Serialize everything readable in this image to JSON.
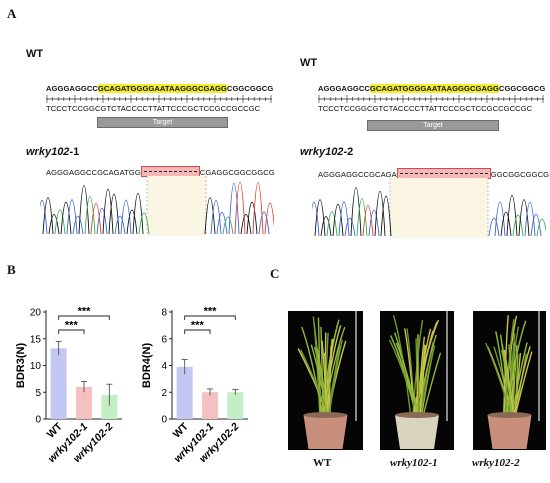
{
  "panels": {
    "a": "A",
    "b": "B",
    "c": "C"
  },
  "panel_a": {
    "left": {
      "wt_label": "WT",
      "wt_seq_pre": "AGGGAGGCC",
      "wt_seq_hl": "GCAGATGGGGAATAAGGGCGAGG",
      "wt_seq_post": "CGGCGGCG",
      "comp_seq": "TCCCTCCGGCGTCTACCCCTTATTCCCGCTCCGCCGCCGC",
      "target_label": "Target",
      "mut_label_main": "wrky102",
      "mut_label_suffix": "-1",
      "mut_seq_pre": "AGGGAGGCCGCAGATGG",
      "mut_seq_post": "CGAGGCGGCGGCG"
    },
    "right": {
      "wt_label": "WT",
      "wt_seq_pre": "AGGGAGGCC",
      "wt_seq_hl": "GCAGATGGGGAATAAGGGCGAGG",
      "wt_seq_post": "CGGCGGCG",
      "comp_seq": "TCCCTCCGGCGTCTACCCCTTATTCCCGCTCCGCCGCCGC",
      "target_label": "Target",
      "mut_label_main": "wrky102",
      "mut_label_suffix": "-2",
      "mut_seq_pre": "AGGGAGGCCGCAGA",
      "mut_seq_post": "GGCGGCGGCG"
    }
  },
  "chart_data": [
    {
      "type": "bar",
      "ylabel": "BDR3(N)",
      "categories": [
        "WT",
        "wrky102-1",
        "wrky102-2"
      ],
      "values": [
        13.2,
        6.0,
        4.5
      ],
      "errors": [
        1.3,
        1.0,
        2.0
      ],
      "ylim": [
        0,
        20
      ],
      "yticks": [
        "0",
        "5",
        "10",
        "15",
        "20"
      ],
      "colors": [
        "#c4c6f4",
        "#f4c0c0",
        "#c4eec4"
      ],
      "significance": [
        "***",
        "***"
      ]
    },
    {
      "type": "bar",
      "ylabel": "BDR4(N)",
      "categories": [
        "WT",
        "wrky102-1",
        "wrky102-2"
      ],
      "values": [
        3.9,
        2.0,
        2.0
      ],
      "errors": [
        0.55,
        0.25,
        0.2
      ],
      "ylim": [
        0,
        8
      ],
      "yticks": [
        "0",
        "2",
        "4",
        "6",
        "8"
      ],
      "colors": [
        "#c4c6f4",
        "#f4c0c0",
        "#c4eec4"
      ],
      "significance": [
        "***",
        "***"
      ]
    }
  ],
  "panel_c": {
    "captions": [
      "WT",
      "wrky102-1",
      "wrky102-2"
    ]
  }
}
